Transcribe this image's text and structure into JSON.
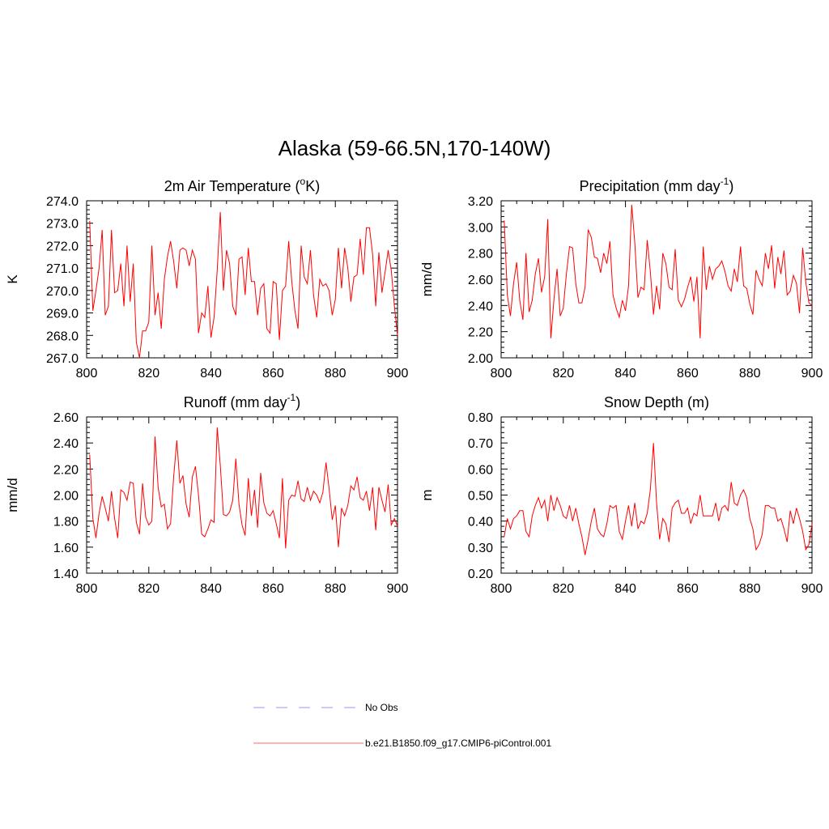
{
  "main_title": "Alaska (59-66.5N,170-140W)",
  "colors": {
    "model": "#ff0000",
    "obs": "#aaaaff",
    "axis": "#000000"
  },
  "legend": [
    {
      "label": "No Obs",
      "style": "dashed",
      "color": "#aaaaff"
    },
    {
      "label": "b.e21.B1850.f09_g17.CMIP6-piControl.001",
      "style": "solid",
      "color": "#ff8888"
    }
  ],
  "chart_data": [
    {
      "type": "line",
      "title": "2m Air Temperature (",
      "title_sup": "o",
      "title_tail": "K)",
      "ylabel": "K",
      "xlim": [
        800,
        900
      ],
      "ylim": [
        267.0,
        274.0
      ],
      "xticks": [
        "800",
        "820",
        "840",
        "860",
        "880",
        "900"
      ],
      "yticks": [
        "267.0",
        "268.0",
        "269.0",
        "270.0",
        "271.0",
        "272.0",
        "273.0",
        "274.0"
      ],
      "x_start": 801,
      "series": [
        {
          "name": "b.e21.B1850.f09_g17.CMIP6-piControl.001",
          "values": [
            273.1,
            269.1,
            270.0,
            271.0,
            272.7,
            268.9,
            269.3,
            272.7,
            269.9,
            270.0,
            271.2,
            269.3,
            272.0,
            269.5,
            271.2,
            267.7,
            267.0,
            268.2,
            268.2,
            268.6,
            272.0,
            268.9,
            269.9,
            268.3,
            270.5,
            271.5,
            272.2,
            271.3,
            270.1,
            271.8,
            271.9,
            271.8,
            271.1,
            271.8,
            271.4,
            268.1,
            269.0,
            268.8,
            270.2,
            267.9,
            268.8,
            270.9,
            273.5,
            270.0,
            271.8,
            271.2,
            269.3,
            268.9,
            271.4,
            271.5,
            269.8,
            271.9,
            270.4,
            270.4,
            268.9,
            270.1,
            270.3,
            268.3,
            268.1,
            270.4,
            270.3,
            267.8,
            270.0,
            270.2,
            272.2,
            270.4,
            269.1,
            268.3,
            272.0,
            270.6,
            270.3,
            271.8,
            269.8,
            268.8,
            270.5,
            270.2,
            270.3,
            270.0,
            268.9,
            269.6,
            271.9,
            270.1,
            271.9,
            271.0,
            269.5,
            270.6,
            270.7,
            272.3,
            270.7,
            272.8,
            272.8,
            271.6,
            269.3,
            271.7,
            269.9,
            270.8,
            271.8,
            270.9,
            269.3,
            268.0
          ]
        }
      ]
    },
    {
      "type": "line",
      "title": "Precipitation (mm day",
      "title_sup": "-1",
      "title_tail": ")",
      "ylabel": "mm/d",
      "xlim": [
        800,
        900
      ],
      "ylim": [
        2.0,
        3.2
      ],
      "xticks": [
        "800",
        "820",
        "840",
        "860",
        "880",
        "900"
      ],
      "yticks": [
        "2.00",
        "2.20",
        "2.40",
        "2.60",
        "2.80",
        "3.00",
        "3.20"
      ],
      "x_start": 801,
      "series": [
        {
          "name": "b.e21.B1850.f09_g17.CMIP6-piControl.001",
          "values": [
            3.05,
            2.48,
            2.32,
            2.57,
            2.73,
            2.44,
            2.29,
            2.8,
            2.35,
            2.44,
            2.64,
            2.76,
            2.5,
            2.62,
            3.06,
            2.15,
            2.45,
            2.68,
            2.32,
            2.38,
            2.64,
            2.85,
            2.84,
            2.57,
            2.42,
            2.42,
            2.54,
            2.98,
            2.92,
            2.77,
            2.76,
            2.65,
            2.8,
            2.72,
            2.89,
            2.48,
            2.38,
            2.31,
            2.44,
            2.36,
            2.55,
            3.17,
            2.88,
            2.46,
            2.54,
            2.52,
            2.9,
            2.66,
            2.33,
            2.55,
            2.37,
            2.8,
            2.72,
            2.54,
            2.52,
            2.83,
            2.44,
            2.39,
            2.45,
            2.54,
            2.62,
            2.43,
            2.62,
            2.15,
            2.85,
            2.52,
            2.7,
            2.6,
            2.68,
            2.7,
            2.74,
            2.66,
            2.55,
            2.51,
            2.68,
            2.58,
            2.85,
            2.55,
            2.53,
            2.41,
            2.33,
            2.67,
            2.6,
            2.55,
            2.8,
            2.68,
            2.86,
            2.53,
            2.77,
            2.64,
            2.82,
            2.48,
            2.51,
            2.63,
            2.57,
            2.34,
            2.84,
            2.58,
            2.42,
            2.4
          ]
        }
      ]
    },
    {
      "type": "line",
      "title": "Runoff (mm day",
      "title_sup": "-1",
      "title_tail": ")",
      "ylabel": "mm/d",
      "xlim": [
        800,
        900
      ],
      "ylim": [
        1.4,
        2.6
      ],
      "xticks": [
        "800",
        "820",
        "840",
        "860",
        "880",
        "900"
      ],
      "yticks": [
        "1.40",
        "1.60",
        "1.80",
        "2.00",
        "2.20",
        "2.40",
        "2.60"
      ],
      "x_start": 801,
      "series": [
        {
          "name": "b.e21.B1850.f09_g17.CMIP6-piControl.001",
          "values": [
            2.31,
            1.82,
            1.67,
            1.86,
            1.99,
            1.9,
            1.8,
            2.03,
            1.82,
            1.67,
            2.04,
            2.02,
            1.96,
            2.1,
            2.09,
            1.79,
            1.7,
            2.09,
            1.83,
            1.77,
            1.8,
            2.45,
            2.06,
            1.91,
            1.93,
            1.74,
            1.78,
            2.14,
            2.42,
            2.09,
            2.15,
            1.93,
            1.83,
            2.14,
            2.22,
            2.0,
            1.7,
            1.68,
            1.74,
            1.81,
            1.79,
            2.52,
            2.23,
            1.85,
            1.84,
            1.87,
            1.96,
            2.28,
            1.93,
            1.77,
            1.69,
            2.13,
            1.84,
            2.04,
            1.75,
            2.17,
            1.94,
            1.86,
            1.84,
            1.88,
            1.78,
            1.67,
            2.13,
            1.59,
            1.96,
            2.0,
            1.99,
            2.11,
            1.97,
            1.95,
            2.06,
            1.96,
            2.03,
            2.0,
            1.94,
            2.02,
            2.25,
            2.05,
            1.81,
            1.92,
            1.6,
            1.9,
            1.84,
            1.92,
            2.07,
            2.04,
            2.14,
            1.98,
            1.96,
            2.03,
            1.88,
            2.06,
            1.73,
            2.06,
            1.96,
            1.87,
            2.08,
            1.77,
            1.82,
            1.76
          ]
        }
      ]
    },
    {
      "type": "line",
      "title": "Snow Depth (m)",
      "title_sup": "",
      "title_tail": "",
      "ylabel": "m",
      "xlim": [
        800,
        900
      ],
      "ylim": [
        0.2,
        0.8
      ],
      "xticks": [
        "800",
        "820",
        "840",
        "860",
        "880",
        "900"
      ],
      "yticks": [
        "0.20",
        "0.30",
        "0.40",
        "0.50",
        "0.60",
        "0.70",
        "0.80"
      ],
      "x_start": 801,
      "series": [
        {
          "name": "b.e21.B1850.f09_g17.CMIP6-piControl.001",
          "values": [
            0.34,
            0.41,
            0.37,
            0.41,
            0.42,
            0.44,
            0.44,
            0.36,
            0.34,
            0.42,
            0.46,
            0.49,
            0.45,
            0.48,
            0.4,
            0.5,
            0.44,
            0.49,
            0.46,
            0.42,
            0.41,
            0.46,
            0.4,
            0.45,
            0.39,
            0.34,
            0.27,
            0.33,
            0.4,
            0.45,
            0.37,
            0.35,
            0.34,
            0.39,
            0.46,
            0.45,
            0.46,
            0.36,
            0.33,
            0.4,
            0.46,
            0.38,
            0.47,
            0.37,
            0.4,
            0.39,
            0.43,
            0.52,
            0.7,
            0.47,
            0.33,
            0.41,
            0.39,
            0.32,
            0.45,
            0.47,
            0.48,
            0.43,
            0.43,
            0.45,
            0.39,
            0.43,
            0.42,
            0.5,
            0.42,
            0.42,
            0.42,
            0.42,
            0.47,
            0.4,
            0.45,
            0.46,
            0.44,
            0.55,
            0.47,
            0.46,
            0.5,
            0.52,
            0.49,
            0.41,
            0.37,
            0.29,
            0.31,
            0.35,
            0.46,
            0.46,
            0.45,
            0.45,
            0.4,
            0.41,
            0.37,
            0.32,
            0.44,
            0.39,
            0.45,
            0.41,
            0.36,
            0.29,
            0.31,
            0.39
          ]
        }
      ]
    }
  ]
}
